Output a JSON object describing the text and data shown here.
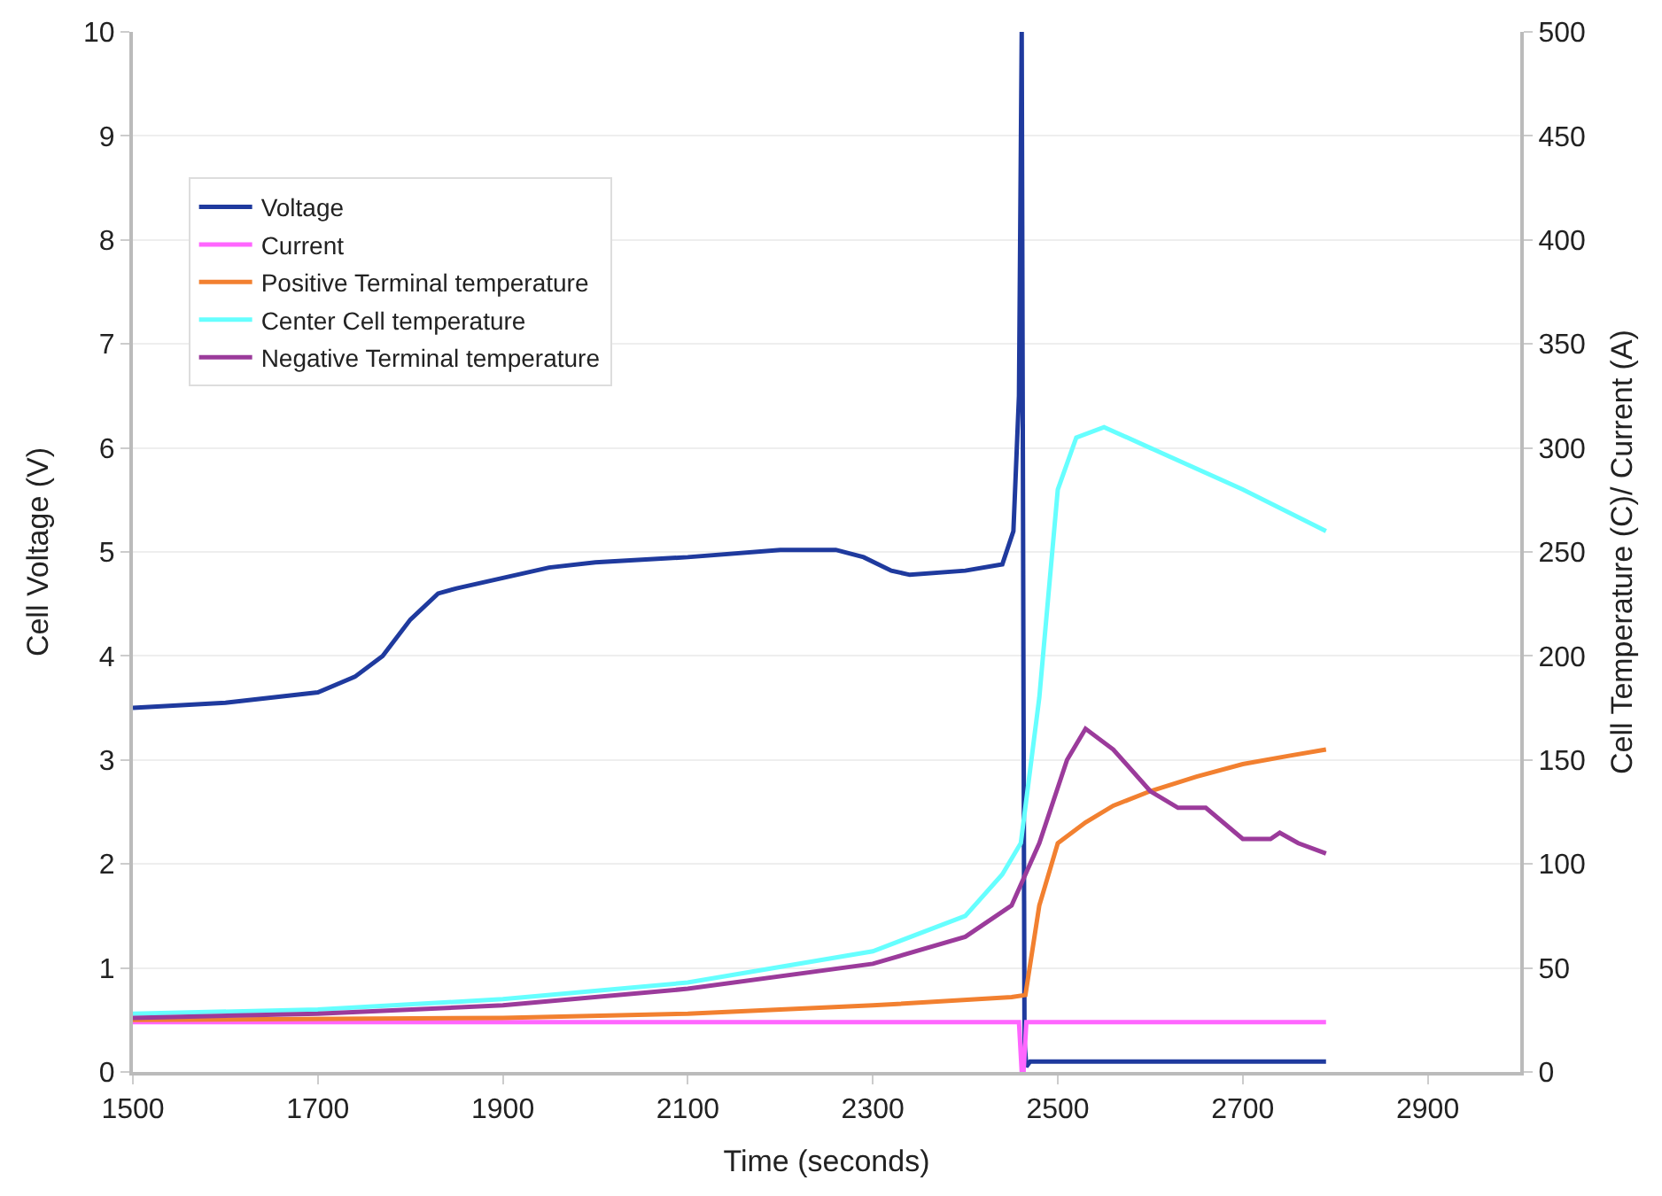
{
  "chart_data": {
    "type": "line",
    "xlabel": "Time (seconds)",
    "ylabel": "Cell Voltage (V)",
    "y2label": "Cell Temperature (C)/ Current (A)",
    "xlim": [
      1500,
      3000
    ],
    "xticks": [
      1500,
      1700,
      1900,
      2100,
      2300,
      2500,
      2700,
      2900
    ],
    "ylim": [
      0,
      10
    ],
    "yticks": [
      0,
      1,
      2,
      3,
      4,
      5,
      6,
      7,
      8,
      9,
      10
    ],
    "y2lim": [
      0,
      500
    ],
    "y2ticks": [
      0,
      50,
      100,
      150,
      200,
      250,
      300,
      350,
      400,
      450,
      500
    ],
    "grid": "y",
    "legend": "top left",
    "marker": "none",
    "line_style": "solid",
    "series": [
      {
        "name": "Voltage",
        "color": "#1f3a9e",
        "x": [
          1500,
          1600,
          1700,
          1740,
          1770,
          1800,
          1830,
          1850,
          1900,
          1950,
          2000,
          2100,
          2200,
          2260,
          2290,
          2320,
          2340,
          2400,
          2440,
          2452,
          2458,
          2461,
          2463,
          2464,
          2466,
          2470,
          2500,
          2600,
          2700,
          2790
        ],
        "values": [
          3.5,
          3.55,
          3.65,
          3.8,
          4.0,
          4.35,
          4.6,
          4.65,
          4.75,
          4.85,
          4.9,
          4.95,
          5.02,
          5.02,
          4.95,
          4.82,
          4.78,
          4.82,
          4.88,
          5.2,
          6.5,
          10,
          3.4,
          0.3,
          0.05,
          0.1,
          0.1,
          0.1,
          0.1,
          0.1
        ]
      },
      {
        "name": "Current",
        "color": "#ff66ff",
        "axis": "y2",
        "x": [
          1500,
          2000,
          2458,
          2461,
          2463,
          2466,
          2600,
          2790
        ],
        "values": [
          24,
          24,
          24,
          0,
          0,
          24,
          24,
          24
        ]
      },
      {
        "name": "Positive Terminal temperature",
        "color": "#f28030",
        "axis": "y2",
        "x": [
          1500,
          1900,
          2100,
          2300,
          2450,
          2465,
          2480,
          2500,
          2530,
          2560,
          2600,
          2650,
          2700,
          2750,
          2790
        ],
        "values": [
          25,
          26,
          28,
          32,
          36,
          37,
          80,
          110,
          120,
          128,
          135,
          142,
          148,
          152,
          155
        ]
      },
      {
        "name": "Center Cell temperature",
        "color": "#66ffff",
        "axis": "y2",
        "x": [
          1500,
          1700,
          1900,
          2100,
          2300,
          2400,
          2440,
          2460,
          2480,
          2500,
          2520,
          2550,
          2600,
          2700,
          2790
        ],
        "values": [
          28,
          30,
          35,
          43,
          58,
          75,
          95,
          110,
          180,
          280,
          305,
          310,
          300,
          280,
          260
        ]
      },
      {
        "name": "Negative Terminal temperature",
        "color": "#9b3b9b",
        "axis": "y2",
        "x": [
          1500,
          1700,
          1900,
          2100,
          2300,
          2400,
          2450,
          2480,
          2510,
          2530,
          2560,
          2600,
          2630,
          2660,
          2700,
          2730,
          2740,
          2760,
          2790
        ],
        "values": [
          26,
          28,
          32,
          40,
          52,
          65,
          80,
          110,
          150,
          165,
          155,
          135,
          127,
          127,
          112,
          112,
          115,
          110,
          105
        ]
      }
    ]
  }
}
